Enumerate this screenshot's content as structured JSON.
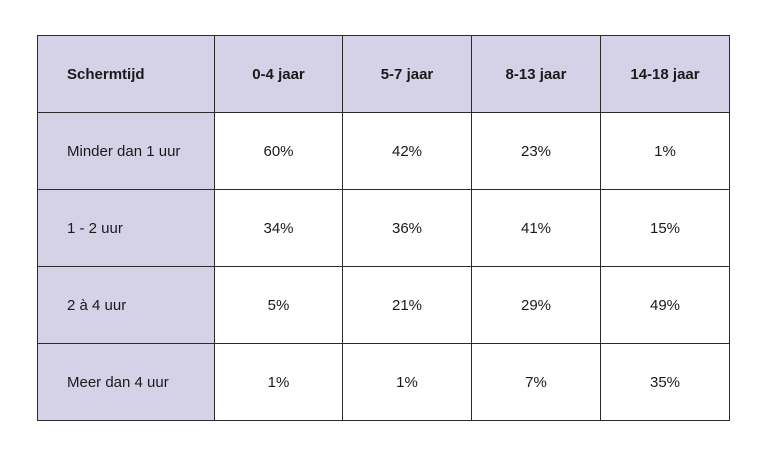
{
  "table": {
    "headers": [
      "Schermtijd",
      "0-4 jaar",
      "5-7 jaar",
      "8-13 jaar",
      "14-18 jaar"
    ],
    "rows": [
      {
        "label": "Minder dan 1 uur",
        "values": [
          "60%",
          "42%",
          "23%",
          "1%"
        ]
      },
      {
        "label": "1 - 2 uur",
        "values": [
          "34%",
          "36%",
          "41%",
          "15%"
        ]
      },
      {
        "label": "2 à 4 uur",
        "values": [
          "5%",
          "21%",
          "29%",
          "49%"
        ]
      },
      {
        "label": "Meer dan 4 uur",
        "values": [
          "1%",
          "1%",
          "7%",
          "35%"
        ]
      }
    ]
  },
  "colors": {
    "header_bg": "#d5d2e8",
    "border": "#2b2b2b",
    "cell_bg": "#ffffff"
  }
}
